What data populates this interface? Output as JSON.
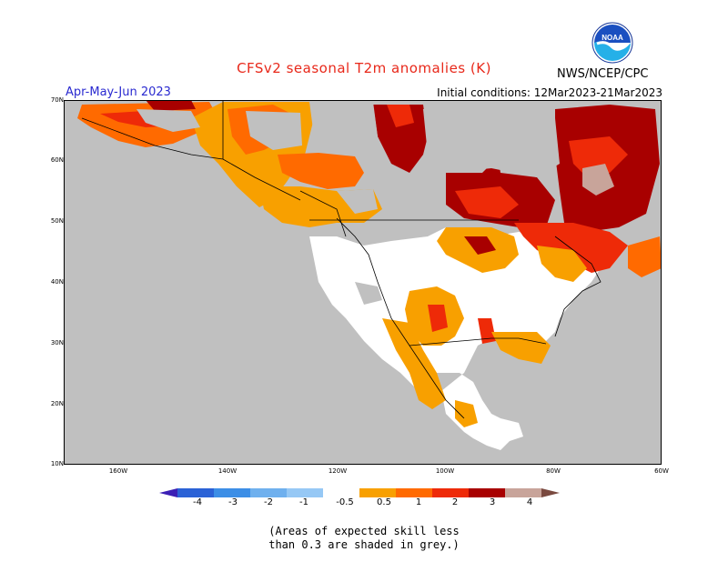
{
  "header": {
    "title": "CFSv2 seasonal T2m anomalies (K)",
    "period": "Apr-May-Jun 2023",
    "initial_conditions": "Initial conditions: 12Mar2023-21Mar2023",
    "agency": "NWS/NCEP/CPC",
    "logo_text": "NOAA"
  },
  "map": {
    "lat_labels": [
      "70N",
      "60N",
      "50N",
      "40N",
      "30N",
      "20N",
      "10N"
    ],
    "lon_labels": [
      "160W",
      "140W",
      "120W",
      "100W",
      "80W",
      "60W"
    ],
    "skill_grey": "#c0c0c0",
    "ocean_color": "#c0c0c0"
  },
  "colorbar": {
    "labels": [
      "-4",
      "-3",
      "-2",
      "-1",
      "-0.5",
      "0.5",
      "1",
      "2",
      "3",
      "4"
    ],
    "colors": [
      "#3b1fb5",
      "#2b62d6",
      "#3c8ee6",
      "#6fb0ee",
      "#96c8f5",
      "#ffffff",
      "#f8a000",
      "#ff6a00",
      "#ee2a08",
      "#a80000",
      "#c8a49a",
      "#7a4a40"
    ]
  },
  "footnote": {
    "line1": "(Areas of expected skill less",
    "line2": "than 0.3 are shaded in grey.)"
  }
}
